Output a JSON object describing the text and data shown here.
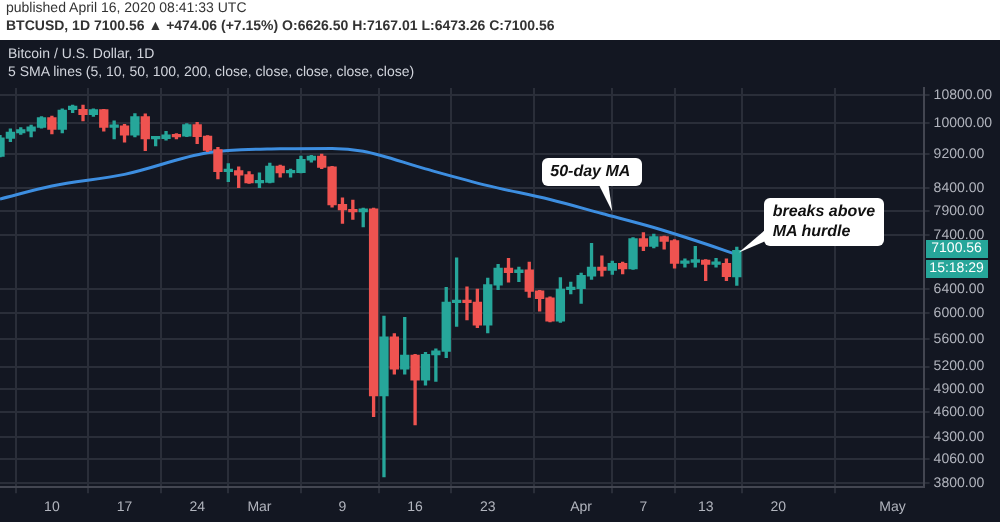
{
  "chart_data": {
    "type": "candlestick",
    "title": "Bitcoin / U.S. Dollar, 1D",
    "subtitle": "5 SMA lines (5, 10, 50, 100, 200, close, close, close, close, close)",
    "annotations": [
      "published April 16, 2020 08:41:33 UTC",
      "BTCUSD, 1D 7100.56 ▲ +474.06 (+7.15%) O:6626.50 H:7167.01 L:6473.26 C:7100.56",
      {
        "text": "50-day MA",
        "x": "2020-04-04",
        "y": 7850
      },
      {
        "text": "breaks above MA hurdle",
        "x": "2020-04-16",
        "y": 7030
      },
      "7100.56",
      "15:18:29"
    ],
    "x": [
      "2020-02-05",
      "2020-02-06",
      "2020-02-07",
      "2020-02-08",
      "2020-02-09",
      "2020-02-10",
      "2020-02-11",
      "2020-02-12",
      "2020-02-13",
      "2020-02-14",
      "2020-02-15",
      "2020-02-16",
      "2020-02-17",
      "2020-02-18",
      "2020-02-19",
      "2020-02-20",
      "2020-02-21",
      "2020-02-22",
      "2020-02-23",
      "2020-02-24",
      "2020-02-25",
      "2020-02-26",
      "2020-02-27",
      "2020-02-28",
      "2020-02-29",
      "2020-03-01",
      "2020-03-02",
      "2020-03-03",
      "2020-03-04",
      "2020-03-05",
      "2020-03-06",
      "2020-03-07",
      "2020-03-08",
      "2020-03-09",
      "2020-03-10",
      "2020-03-11",
      "2020-03-12",
      "2020-03-13",
      "2020-03-14",
      "2020-03-15",
      "2020-03-16",
      "2020-03-17",
      "2020-03-18",
      "2020-03-19",
      "2020-03-20",
      "2020-03-21",
      "2020-03-22",
      "2020-03-23",
      "2020-03-24",
      "2020-03-25",
      "2020-03-26",
      "2020-03-27",
      "2020-03-28",
      "2020-03-29",
      "2020-03-30",
      "2020-03-31",
      "2020-04-01",
      "2020-04-02",
      "2020-04-03",
      "2020-04-04",
      "2020-04-05",
      "2020-04-06",
      "2020-04-07",
      "2020-04-08",
      "2020-04-09",
      "2020-04-10",
      "2020-04-11",
      "2020-04-12",
      "2020-04-13",
      "2020-04-14",
      "2020-04-15",
      "2020-04-16"
    ],
    "ohlc": [
      [
        9160,
        9680,
        9150,
        9615
      ],
      [
        9615,
        9850,
        9530,
        9760
      ],
      [
        9760,
        9880,
        9720,
        9830
      ],
      [
        9800,
        9950,
        9650,
        9900
      ],
      [
        9900,
        10180,
        9880,
        10150
      ],
      [
        10150,
        10190,
        9730,
        9850
      ],
      [
        9850,
        10390,
        9760,
        10360
      ],
      [
        10390,
        10500,
        10300,
        10470
      ],
      [
        10380,
        10500,
        10080,
        10250
      ],
      [
        10250,
        10390,
        10200,
        10370
      ],
      [
        10370,
        10380,
        9800,
        9900
      ],
      [
        9900,
        10060,
        9600,
        9930
      ],
      [
        9930,
        9970,
        9520,
        9700
      ],
      [
        9700,
        10260,
        9650,
        10180
      ],
      [
        10180,
        10250,
        9300,
        9600
      ],
      [
        9600,
        9650,
        9420,
        9610
      ],
      [
        9610,
        9780,
        9570,
        9690
      ],
      [
        9700,
        9720,
        9600,
        9650
      ],
      [
        9670,
        9990,
        9660,
        9960
      ],
      [
        9960,
        10020,
        9480,
        9660
      ],
      [
        9660,
        9670,
        9280,
        9310
      ],
      [
        9310,
        9370,
        8620,
        8790
      ],
      [
        8790,
        8970,
        8560,
        8800
      ],
      [
        8800,
        8890,
        8420,
        8710
      ],
      [
        8710,
        8780,
        8520,
        8530
      ],
      [
        8530,
        8750,
        8420,
        8540
      ],
      [
        8540,
        8980,
        8530,
        8910
      ],
      [
        8910,
        8930,
        8660,
        8760
      ],
      [
        8760,
        8840,
        8660,
        8770
      ],
      [
        8770,
        9150,
        8760,
        9070
      ],
      [
        9070,
        9170,
        9020,
        9150
      ],
      [
        9150,
        9200,
        8860,
        8890
      ],
      [
        8890,
        8900,
        7990,
        8040
      ],
      [
        8040,
        8180,
        7650,
        7930
      ],
      [
        7930,
        8130,
        7730,
        7890
      ],
      [
        7890,
        7960,
        7580,
        7940
      ],
      [
        7940,
        7960,
        4550,
        4810
      ],
      [
        4810,
        5950,
        3870,
        5630
      ],
      [
        5630,
        5680,
        5100,
        5170
      ],
      [
        5170,
        5930,
        5100,
        5360
      ],
      [
        5360,
        5370,
        4450,
        5020
      ],
      [
        5020,
        5400,
        4950,
        5370
      ],
      [
        5370,
        5450,
        5000,
        5420
      ],
      [
        5420,
        6430,
        5330,
        6180
      ],
      [
        6180,
        6960,
        5800,
        6200
      ],
      [
        6200,
        6440,
        5900,
        6180
      ],
      [
        6180,
        6400,
        5780,
        5820
      ],
      [
        5820,
        6590,
        5700,
        6480
      ],
      [
        6480,
        6840,
        6400,
        6770
      ],
      [
        6770,
        6950,
        6530,
        6700
      ],
      [
        6700,
        6790,
        6540,
        6740
      ],
      [
        6740,
        6880,
        6270,
        6370
      ],
      [
        6370,
        6380,
        6040,
        6250
      ],
      [
        6250,
        6270,
        5870,
        5880
      ],
      [
        5880,
        6600,
        5860,
        6400
      ],
      [
        6400,
        6520,
        6330,
        6420
      ],
      [
        6420,
        6680,
        6170,
        6640
      ],
      [
        6640,
        7240,
        6580,
        6790
      ],
      [
        6790,
        7000,
        6640,
        6740
      ],
      [
        6740,
        6900,
        6670,
        6860
      ],
      [
        6860,
        6880,
        6680,
        6770
      ],
      [
        6770,
        7350,
        6760,
        7330
      ],
      [
        7330,
        7450,
        7110,
        7190
      ],
      [
        7190,
        7420,
        7160,
        7370
      ],
      [
        7370,
        7380,
        7140,
        7290
      ],
      [
        7290,
        7310,
        6780,
        6870
      ],
      [
        6870,
        6940,
        6800,
        6890
      ],
      [
        6890,
        7180,
        6800,
        6920
      ],
      [
        6920,
        6930,
        6560,
        6850
      ],
      [
        6850,
        6950,
        6800,
        6860
      ],
      [
        6860,
        6940,
        6560,
        6630
      ],
      [
        6626.5,
        7167.01,
        6473.26,
        7100.56
      ]
    ],
    "colors": [
      "#26a69a",
      "#26a69a",
      "#26a69a",
      "#26a69a",
      "#26a69a",
      "#ef5350",
      "#26a69a",
      "#26a69a",
      "#ef5350",
      "#26a69a",
      "#ef5350",
      "#26a69a",
      "#ef5350",
      "#26a69a",
      "#ef5350",
      "#26a69a",
      "#26a69a",
      "#ef5350",
      "#26a69a",
      "#ef5350",
      "#ef5350",
      "#ef5350",
      "#26a69a",
      "#ef5350",
      "#ef5350",
      "#26a69a",
      "#26a69a",
      "#ef5350",
      "#26a69a",
      "#26a69a",
      "#26a69a",
      "#ef5350",
      "#ef5350",
      "#ef5350",
      "#ef5350",
      "#26a69a",
      "#ef5350",
      "#26a69a",
      "#ef5350",
      "#26a69a",
      "#ef5350",
      "#26a69a",
      "#26a69a",
      "#26a69a",
      "#26a69a",
      "#ef5350",
      "#ef5350",
      "#26a69a",
      "#26a69a",
      "#ef5350",
      "#26a69a",
      "#ef5350",
      "#ef5350",
      "#ef5350",
      "#26a69a",
      "#26a69a",
      "#26a69a",
      "#26a69a",
      "#ef5350",
      "#26a69a",
      "#ef5350",
      "#26a69a",
      "#ef5350",
      "#26a69a",
      "#ef5350",
      "#ef5350",
      "#26a69a",
      "#26a69a",
      "#ef5350",
      "#26a69a",
      "#ef5350",
      "#26a69a"
    ],
    "series": [
      {
        "type": "line",
        "color": "#3d8ee0",
        "x": [
          "2020-02-05",
          "2020-02-10",
          "2020-02-17",
          "2020-02-25",
          "2020-03-03",
          "2020-03-08",
          "2020-03-11",
          "2020-03-17",
          "2020-03-23",
          "2020-03-29",
          "2020-04-03",
          "2020-04-08",
          "2020-04-12",
          "2020-04-16"
        ],
        "values": [
          8160,
          8450,
          8720,
          9240,
          9340,
          9350,
          9280,
          8850,
          8460,
          8150,
          7850,
          7560,
          7300,
          7030
        ]
      }
    ],
    "xlim": [
      "2020-02-05",
      "2020-05-04"
    ],
    "xticks": [
      {
        "value": "2020-02-10",
        "label": "10"
      },
      {
        "value": "2020-02-17",
        "label": "17"
      },
      {
        "value": "2020-02-24",
        "label": "24"
      },
      {
        "value": "2020-03-01",
        "label": "Mar"
      },
      {
        "value": "2020-03-09",
        "label": "9"
      },
      {
        "value": "2020-03-16",
        "label": "16"
      },
      {
        "value": "2020-03-23",
        "label": "23"
      },
      {
        "value": "2020-04-01",
        "label": "Apr"
      },
      {
        "value": "2020-04-07",
        "label": "7"
      },
      {
        "value": "2020-04-13",
        "label": "13"
      },
      {
        "value": "2020-04-20",
        "label": "20"
      },
      {
        "value": "2020-05-01",
        "label": "May"
      }
    ],
    "ylim": [
      3760,
      11000
    ],
    "yticks": [
      {
        "value": 3800,
        "label": "3800.00"
      },
      {
        "value": 4060,
        "label": "4060.00"
      },
      {
        "value": 4300,
        "label": "4300.00"
      },
      {
        "value": 4600,
        "label": "4600.00"
      },
      {
        "value": 4900,
        "label": "4900.00"
      },
      {
        "value": 5200,
        "label": "5200.00"
      },
      {
        "value": 5600,
        "label": "5600.00"
      },
      {
        "value": 6000,
        "label": "6000.00"
      },
      {
        "value": 6400,
        "label": "6400.00"
      },
      {
        "value": 7400,
        "label": "7400.00"
      },
      {
        "value": 7900,
        "label": "7900.00"
      },
      {
        "value": 8400,
        "label": "8400.00"
      },
      {
        "value": 9200,
        "label": "9200.00"
      },
      {
        "value": 10000,
        "label": "10000.00"
      },
      {
        "value": 10800,
        "label": "10800.00"
      }
    ],
    "log": true,
    "grid": true,
    "legend": false,
    "marker": "none",
    "line_style": "solid"
  }
}
